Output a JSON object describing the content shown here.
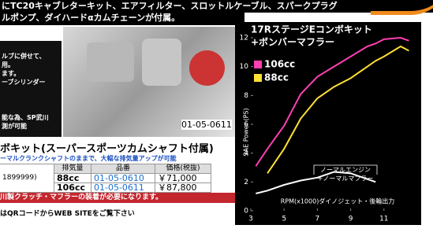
{
  "banner": {
    "lines": [
      "にTC20キャブレターキット、エアフィルター、スロットルケーブル、スパークプラグ",
      "ルポンプ、ダイハードαカムチェーンが付属。"
    ]
  },
  "left_panel": {
    "lines": [
      "ルブに併せて、",
      "用。",
      "ます。",
      "ーブシリンダー",
      "能な為、SP武川",
      "測が可能"
    ]
  },
  "photo_label": "01-05-0611",
  "kit": {
    "heading": "ボキット(スーパースポーツカムシャフト付属)",
    "subtitle": "ーマルクランクシャフトのままで、大幅な排気量アップが可能"
  },
  "table": {
    "header": [
      "排気量",
      "品番",
      "価格(税抜)"
    ],
    "side_note": "1899999)",
    "rows": [
      [
        "88cc",
        "01-05-0610",
        "￥71,000"
      ],
      [
        "106cc",
        "01-05-0611",
        "￥87,800"
      ]
    ]
  },
  "notice": "川製クラッチ・マフラーの装着が必要になります。",
  "footer": "はQRコードからWEB SITEをご覧下さい",
  "chart_data": {
    "type": "line",
    "title": [
      "17RステージEコンボキット",
      "+ボンバーマフラー"
    ],
    "y_label": "SAE Power (PS)",
    "x_label": "RPM(x1000)ダイノジェット・後輪出力",
    "annotation": [
      "ノーマルエンジン",
      "+ノーマルマフラー"
    ],
    "x": [
      3.3,
      4,
      5,
      6,
      7,
      8,
      9,
      10,
      10.5,
      11,
      12,
      12.5
    ],
    "series": [
      {
        "name": "106cc",
        "color": "#ff3fb4",
        "values": [
          3.1,
          4.3,
          5.9,
          8.1,
          9.3,
          10,
          10.7,
          11.4,
          11.6,
          11.9,
          12,
          11.8
        ]
      },
      {
        "name": "88cc",
        "color": "#ffe033",
        "values": [
          null,
          2.6,
          4.3,
          6.4,
          7.8,
          8.6,
          9.2,
          10,
          10.4,
          10.7,
          11.4,
          11.1
        ]
      },
      {
        "name": null,
        "color": "#ffffff",
        "values": [
          1.2,
          1.4,
          1.8,
          2.1,
          2.3,
          2.7,
          2.6,
          2.2,
          2.0,
          null,
          null,
          null
        ]
      }
    ],
    "xlim": [
      3,
      13
    ],
    "xticks": [
      3,
      5,
      7,
      9,
      11
    ],
    "ylim": [
      0,
      12
    ],
    "yticks": [
      0,
      2,
      4,
      6,
      8,
      10,
      12
    ],
    "grid": false
  }
}
